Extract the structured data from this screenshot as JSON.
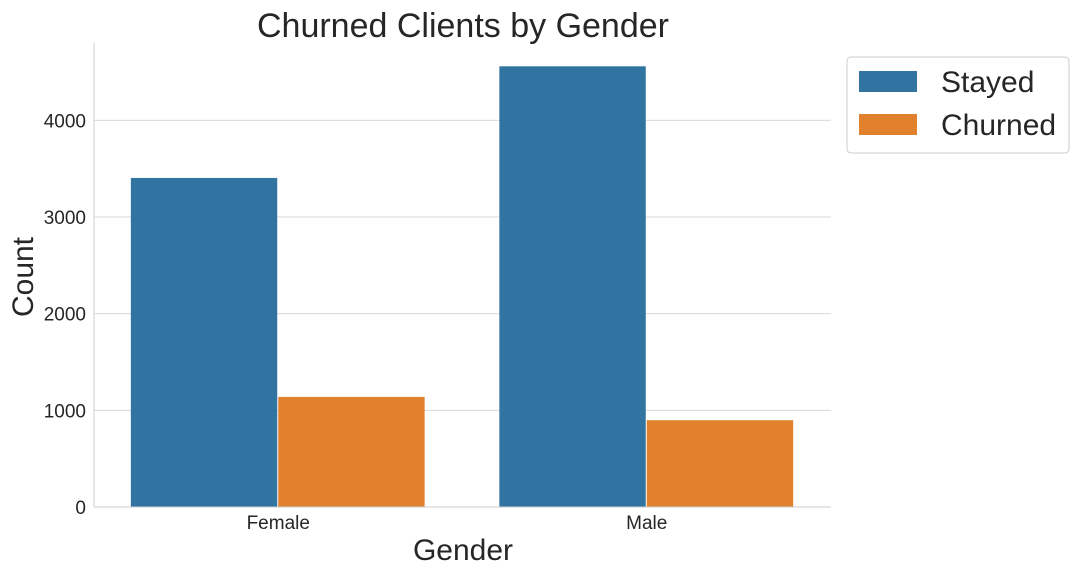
{
  "chart_data": {
    "type": "bar",
    "title": "Churned Clients by Gender",
    "xlabel": "Gender",
    "ylabel": "Count",
    "categories": [
      "Female",
      "Male"
    ],
    "series": [
      {
        "name": "Stayed",
        "values": [
          3404,
          4559
        ],
        "color": "#3274a1"
      },
      {
        "name": "Churned",
        "values": [
          1139,
          898
        ],
        "color": "#e1812c"
      }
    ],
    "ylim": [
      0,
      4800
    ],
    "yticks": [
      0,
      1000,
      2000,
      3000,
      4000
    ],
    "grid": true,
    "legend_position": "outside-top-right"
  }
}
